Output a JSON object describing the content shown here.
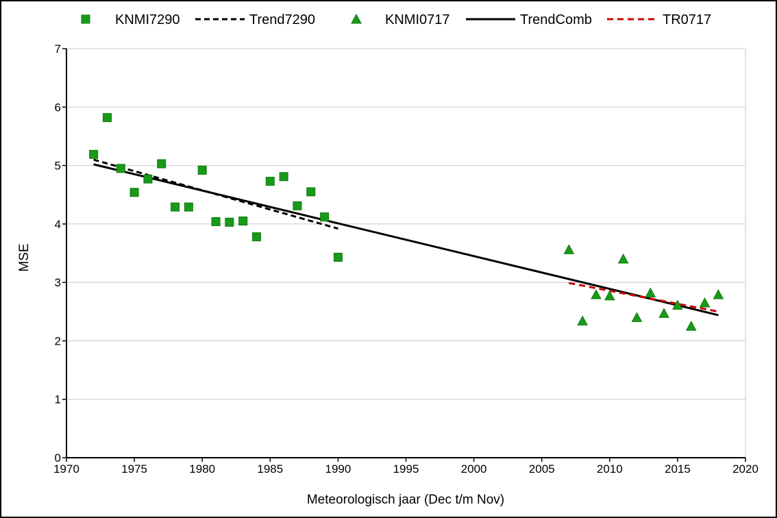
{
  "chart_data": {
    "type": "scatter",
    "xlabel": "Meteorologisch jaar (Dec t/m Nov)",
    "ylabel": "MSE",
    "xlim": [
      1970,
      2020
    ],
    "ylim": [
      0,
      7
    ],
    "xticks": [
      1970,
      1975,
      1980,
      1985,
      1990,
      1995,
      2000,
      2005,
      2010,
      2015,
      2020
    ],
    "yticks": [
      0,
      1,
      2,
      3,
      4,
      5,
      6,
      7
    ],
    "grid": "horizontal",
    "legend_position": "top",
    "series": [
      {
        "name": "KNMI7290",
        "kind": "markers",
        "marker": "square",
        "color": "#1a9a1a",
        "points": [
          [
            1972,
            5.19
          ],
          [
            1973,
            5.82
          ],
          [
            1974,
            4.95
          ],
          [
            1975,
            4.54
          ],
          [
            1976,
            4.77
          ],
          [
            1977,
            5.03
          ],
          [
            1978,
            4.29
          ],
          [
            1979,
            4.29
          ],
          [
            1980,
            4.92
          ],
          [
            1981,
            4.04
          ],
          [
            1982,
            4.03
          ],
          [
            1983,
            4.05
          ],
          [
            1984,
            3.78
          ],
          [
            1985,
            4.73
          ],
          [
            1986,
            4.81
          ],
          [
            1987,
            4.31
          ],
          [
            1988,
            4.55
          ],
          [
            1989,
            4.12
          ],
          [
            1990,
            3.43
          ]
        ]
      },
      {
        "name": "Trend7290",
        "kind": "line",
        "dash": "dashed",
        "color": "#000000",
        "points": [
          [
            1972,
            5.1
          ],
          [
            1990,
            3.92
          ]
        ]
      },
      {
        "name": "KNMI0717",
        "kind": "markers",
        "marker": "triangle",
        "color": "#1a9a1a",
        "points": [
          [
            2007,
            3.56
          ],
          [
            2008,
            2.34
          ],
          [
            2009,
            2.79
          ],
          [
            2010,
            2.77
          ],
          [
            2011,
            3.4
          ],
          [
            2012,
            2.4
          ],
          [
            2013,
            2.82
          ],
          [
            2014,
            2.47
          ],
          [
            2015,
            2.61
          ],
          [
            2016,
            2.25
          ],
          [
            2017,
            2.65
          ],
          [
            2018,
            2.79
          ]
        ]
      },
      {
        "name": "TrendComb",
        "kind": "line",
        "dash": "solid",
        "color": "#000000",
        "points": [
          [
            1972,
            5.02
          ],
          [
            2018,
            2.44
          ]
        ]
      },
      {
        "name": "TR0717",
        "kind": "line",
        "dash": "dashed",
        "color": "#cc0000",
        "points": [
          [
            2007,
            2.99
          ],
          [
            2018,
            2.5
          ]
        ]
      }
    ]
  }
}
